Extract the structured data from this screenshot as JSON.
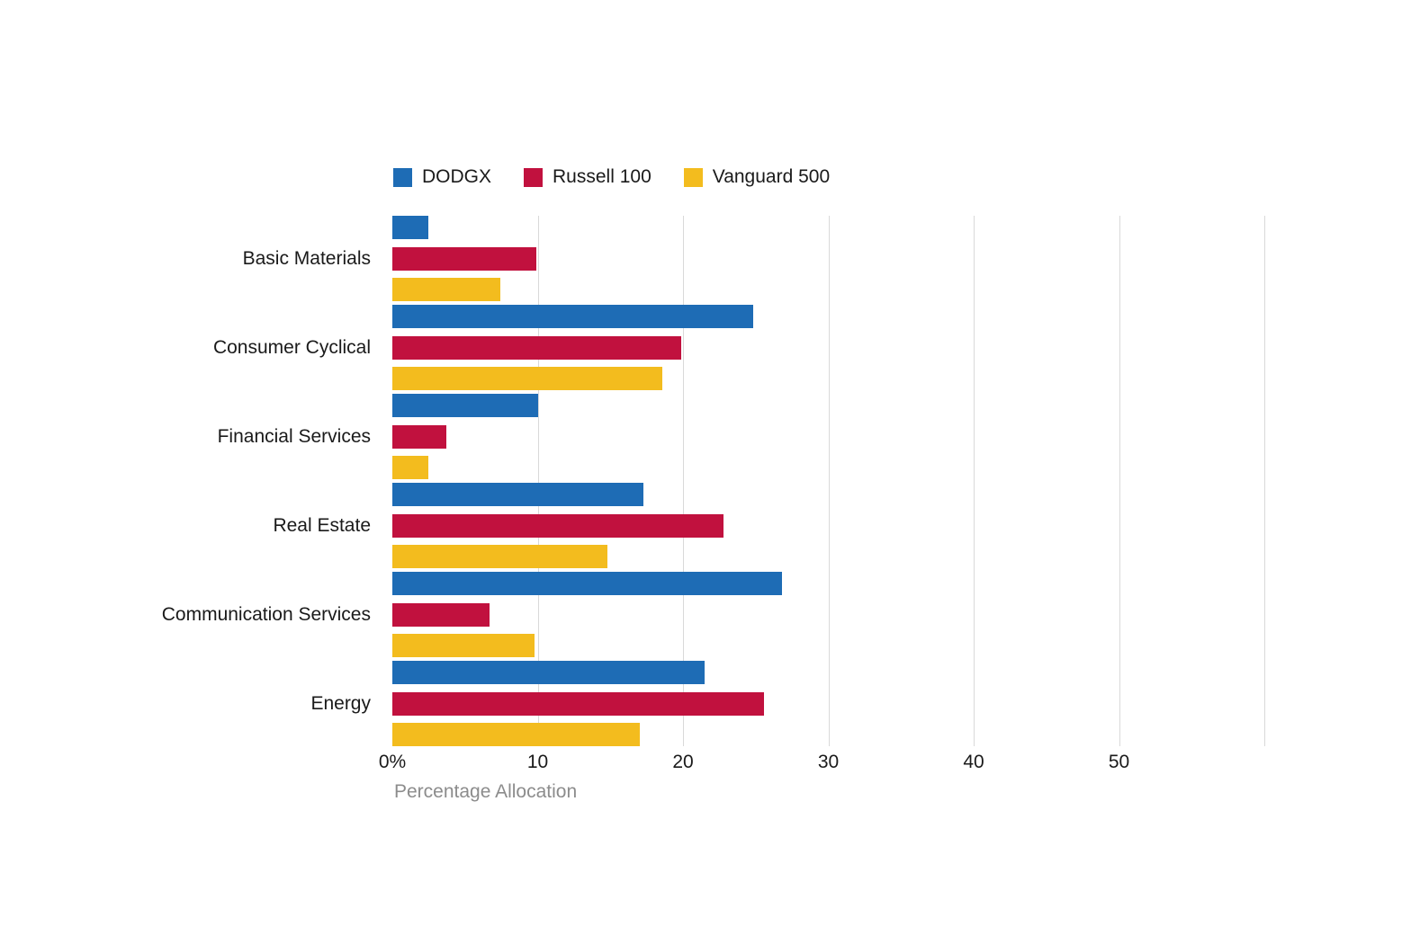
{
  "chart_data": {
    "type": "bar",
    "orientation": "horizontal",
    "title": "",
    "xlabel": "Percentage Allocation",
    "ylabel": "",
    "xlim": [
      0,
      60
    ],
    "grid": true,
    "gridlines": [
      10,
      20,
      30,
      40,
      50,
      60
    ],
    "xticks": [
      {
        "value": 0,
        "label": "0%"
      },
      {
        "value": 10,
        "label": "10"
      },
      {
        "value": 20,
        "label": "20"
      },
      {
        "value": 30,
        "label": "30"
      },
      {
        "value": 40,
        "label": "40"
      },
      {
        "value": 50,
        "label": "50"
      }
    ],
    "legend_position": "top",
    "categories": [
      "Basic Materials",
      "Consumer Cyclical",
      "Financial Services",
      "Real Estate",
      "Communication Services",
      "Energy"
    ],
    "series": [
      {
        "name": "DODGX",
        "color": "#1E6CB5",
        "values": [
          2.5,
          24.8,
          10.0,
          17.3,
          26.8,
          21.5
        ]
      },
      {
        "name": "Russell 100",
        "color": "#C1113E",
        "values": [
          9.9,
          19.9,
          3.7,
          22.8,
          6.7,
          25.6
        ]
      },
      {
        "name": "Vanguard 500",
        "color": "#F3BC1E",
        "values": [
          7.4,
          18.6,
          2.5,
          14.8,
          9.8,
          17.0
        ]
      }
    ]
  },
  "colors": {
    "grid": "#d9d9d9",
    "text": "#1a1a1a",
    "axis_title": "#8c8c8c",
    "background": "#ffffff"
  }
}
